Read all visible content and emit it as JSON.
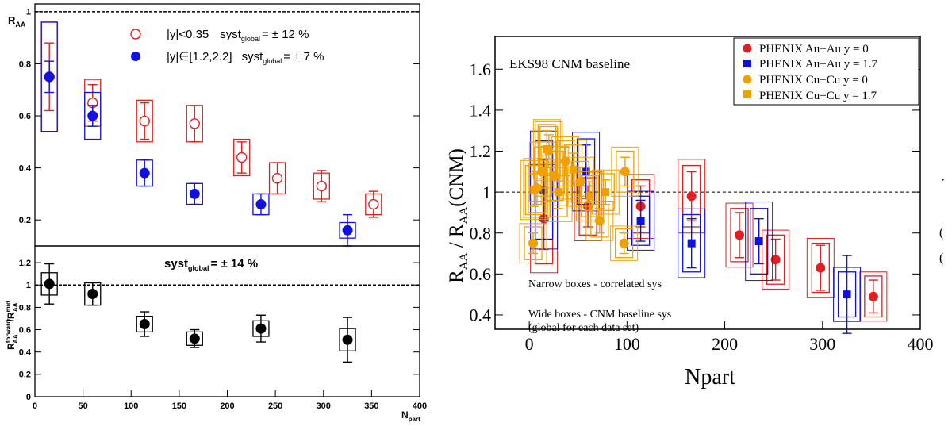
{
  "chart_data": [
    {
      "type": "scatter",
      "panel": "left-top",
      "ylabel": "R_AA",
      "xlim": [
        0,
        400
      ],
      "ylim": [
        0.1,
        1.03
      ],
      "yticks": [
        0.2,
        0.4,
        0.6,
        0.8,
        1
      ],
      "ytick_labels": [
        "0.2",
        "0.4",
        "0.6",
        "0.8",
        "1"
      ],
      "reference_line": 1,
      "legend_position": "top",
      "series": [
        {
          "name": "|y|<0.35",
          "legend_prefix": "|y|<0.35",
          "legend_syst": "syst",
          "legend_syst_sub": "global",
          "legend_syst_value": "= ± 12 %",
          "color": "#e02020",
          "marker": "open-circle",
          "points": [
            {
              "x": 15,
              "y": 0.75,
              "err": 0.13,
              "box": 0.21
            },
            {
              "x": 60,
              "y": 0.65,
              "err": 0.07,
              "box": 0.09
            },
            {
              "x": 114,
              "y": 0.58,
              "err": 0.07,
              "box": 0.08
            },
            {
              "x": 166,
              "y": 0.57,
              "err": 0.07,
              "box": 0.07
            },
            {
              "x": 215,
              "y": 0.44,
              "err": 0.06,
              "box": 0.07
            },
            {
              "x": 252,
              "y": 0.36,
              "err": 0.06,
              "box": 0.06
            },
            {
              "x": 298,
              "y": 0.33,
              "err": 0.06,
              "box": 0.05
            },
            {
              "x": 352,
              "y": 0.26,
              "err": 0.05,
              "box": 0.04
            }
          ]
        },
        {
          "name": "|y|∈[1.2,2.2]",
          "legend_prefix": "|y|∈[1.2,2.2]",
          "legend_syst": "syst",
          "legend_syst_sub": "global",
          "legend_syst_value": "= ± 7 %",
          "color": "#1010e0",
          "marker": "filled-circle",
          "points": [
            {
              "x": 15,
              "y": 0.75,
              "err": 0.06,
              "box": 0.21
            },
            {
              "x": 60,
              "y": 0.6,
              "err": 0.04,
              "box": 0.09
            },
            {
              "x": 114,
              "y": 0.38,
              "err": 0.05,
              "box": 0.05
            },
            {
              "x": 166,
              "y": 0.3,
              "err": 0.04,
              "box": 0.04
            },
            {
              "x": 235,
              "y": 0.26,
              "err": 0.04,
              "box": 0.04
            },
            {
              "x": 325,
              "y": 0.16,
              "err": 0.06,
              "box": 0.03
            }
          ]
        }
      ]
    },
    {
      "type": "scatter",
      "panel": "left-bottom",
      "ylabel": "R_AA^forward/R_AA^mid",
      "xlabel": "N_part",
      "xlim": [
        0,
        400
      ],
      "ylim": [
        0,
        1.35
      ],
      "xticks": [
        0,
        50,
        100,
        150,
        200,
        250,
        300,
        350,
        400
      ],
      "xtick_labels": [
        "0",
        "50",
        "100",
        "150",
        "200",
        "250",
        "300",
        "350",
        "400"
      ],
      "yticks": [
        0,
        0.2,
        0.4,
        0.6,
        0.8,
        1,
        1.2
      ],
      "ytick_labels": [
        "0",
        "0.2",
        "0.4",
        "0.6",
        "0.8",
        "1",
        "1.2"
      ],
      "reference_line": 1,
      "annotation": {
        "main": "syst",
        "sub": "global",
        "value": "= ± 14 %"
      },
      "series": [
        {
          "name": "",
          "color": "#000000",
          "marker": "filled-circle",
          "points": [
            {
              "x": 15,
              "y": 1.01,
              "err": 0.18,
              "box": 0.1
            },
            {
              "x": 60,
              "y": 0.92,
              "err": 0.1,
              "box": 0.1
            },
            {
              "x": 114,
              "y": 0.65,
              "err": 0.11,
              "box": 0.07
            },
            {
              "x": 166,
              "y": 0.52,
              "err": 0.08,
              "box": 0.06
            },
            {
              "x": 235,
              "y": 0.61,
              "err": 0.12,
              "box": 0.07
            },
            {
              "x": 325,
              "y": 0.51,
              "err": 0.2,
              "box": 0.1
            }
          ]
        }
      ]
    },
    {
      "type": "scatter",
      "panel": "right",
      "title_text": "EKS98 CNM baseline",
      "ylabel": "R_AA / R_AA(CNM)",
      "xlabel": "Npart",
      "xlim": [
        -35,
        400
      ],
      "ylim": [
        0.33,
        1.76
      ],
      "xticks": [
        0,
        100,
        200,
        300,
        400
      ],
      "xtick_labels": [
        "0",
        "100",
        "200",
        "300",
        "400"
      ],
      "yticks": [
        0.4,
        0.6,
        0.8,
        1,
        1.2,
        1.4,
        1.6
      ],
      "ytick_labels": [
        "0.4",
        "0.6",
        "0.8",
        "1",
        "1.2",
        "1.4",
        "1.6"
      ],
      "reference_line": 1,
      "legend_position": "top-right",
      "notes": [
        "Narrow boxes - correlated sys",
        "Wide boxes - CNM baseline sys",
        "(global for each data set)"
      ],
      "series": [
        {
          "name": "PHENIX Au+Au y = 0",
          "color": "#e02020",
          "marker": "circle",
          "points": [
            {
              "x": 15,
              "y": 0.87,
              "err": 0.15,
              "box": 0.22
            },
            {
              "x": 60,
              "y": 0.93,
              "err": 0.1,
              "box": 0.14
            },
            {
              "x": 114,
              "y": 0.93,
              "err": 0.1,
              "box": 0.13
            },
            {
              "x": 166,
              "y": 0.98,
              "err": 0.12,
              "box": 0.15
            },
            {
              "x": 215,
              "y": 0.79,
              "err": 0.11,
              "box": 0.13
            },
            {
              "x": 252,
              "y": 0.67,
              "err": 0.1,
              "box": 0.12
            },
            {
              "x": 298,
              "y": 0.63,
              "err": 0.11,
              "box": 0.12
            },
            {
              "x": 352,
              "y": 0.49,
              "err": 0.08,
              "box": 0.1
            }
          ]
        },
        {
          "name": "PHENIX Au+Au y = 1.7",
          "color": "#1010e0",
          "marker": "square",
          "points": [
            {
              "x": 15,
              "y": 1.01,
              "err": 0.15,
              "box": 0.24
            },
            {
              "x": 58,
              "y": 1.1,
              "err": 0.13,
              "box": 0.16
            },
            {
              "x": 114,
              "y": 0.86,
              "err": 0.1,
              "box": 0.12
            },
            {
              "x": 166,
              "y": 0.75,
              "err": 0.12,
              "box": 0.14
            },
            {
              "x": 235,
              "y": 0.76,
              "err": 0.11,
              "box": 0.16
            },
            {
              "x": 325,
              "y": 0.5,
              "err": 0.19,
              "box": 0.11
            }
          ]
        },
        {
          "name": "PHENIX Cu+Cu y = 0",
          "color": "#f0a000",
          "marker": "circle",
          "points": [
            {
              "x": 4,
              "y": 0.75,
              "err": 0.05,
              "box": 0.08
            },
            {
              "x": 8,
              "y": 1.02,
              "err": 0.08,
              "box": 0.12
            },
            {
              "x": 14,
              "y": 1.1,
              "err": 0.08,
              "box": 0.12
            },
            {
              "x": 20,
              "y": 1.2,
              "err": 0.08,
              "box": 0.12
            },
            {
              "x": 26,
              "y": 1.08,
              "err": 0.08,
              "box": 0.12
            },
            {
              "x": 37,
              "y": 1.15,
              "err": 0.07,
              "box": 0.1
            },
            {
              "x": 52,
              "y": 1.05,
              "err": 0.07,
              "box": 0.1
            },
            {
              "x": 72,
              "y": 0.86,
              "err": 0.06,
              "box": 0.08
            },
            {
              "x": 97,
              "y": 0.75,
              "err": 0.05,
              "box": 0.07
            },
            {
              "x": 98,
              "y": 1.1,
              "err": 0.07,
              "box": 0.1
            }
          ]
        },
        {
          "name": "PHENIX Cu+Cu y = 1.7",
          "color": "#f0a000",
          "marker": "square",
          "points": [
            {
              "x": 5,
              "y": 1.01,
              "err": 0.08,
              "box": 0.12
            },
            {
              "x": 18,
              "y": 1.21,
              "err": 0.09,
              "box": 0.12
            },
            {
              "x": 30,
              "y": 1.0,
              "err": 0.08,
              "box": 0.12
            },
            {
              "x": 45,
              "y": 1.11,
              "err": 0.08,
              "box": 0.12
            },
            {
              "x": 62,
              "y": 0.98,
              "err": 0.07,
              "box": 0.1
            },
            {
              "x": 78,
              "y": 1.0,
              "err": 0.06,
              "box": 0.09
            }
          ]
        }
      ]
    }
  ],
  "edge_marks": [
    "·",
    "(",
    "("
  ]
}
